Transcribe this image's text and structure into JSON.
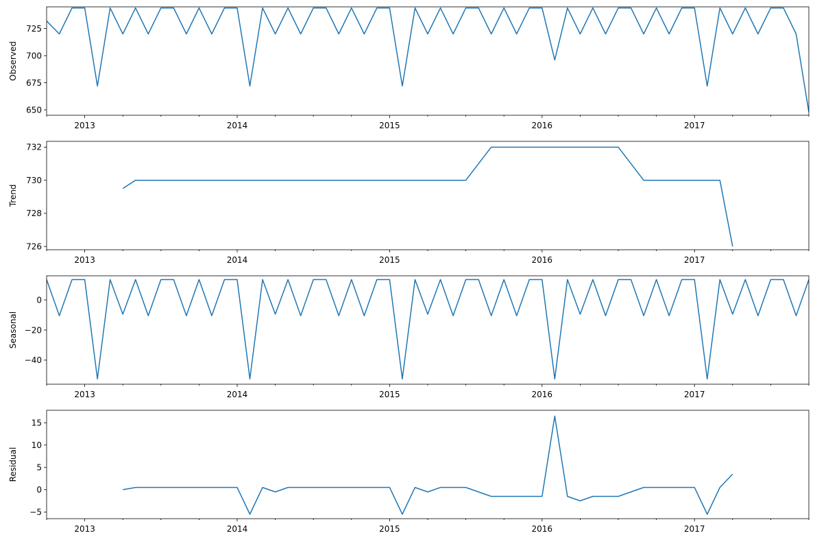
{
  "chart_data": [
    {
      "type": "line",
      "panel": "observed",
      "ylabel": "Observed",
      "ylim": [
        645,
        745
      ],
      "yticks": [
        650,
        675,
        700,
        725
      ],
      "xlim": [
        "2012-10",
        "2017-10"
      ],
      "x_tick_labels": [
        "2013",
        "2014",
        "2015",
        "2016",
        "2017"
      ],
      "color": "#1f77b4",
      "x": [
        "2012-10",
        "2012-11",
        "2012-12",
        "2013-01",
        "2013-02",
        "2013-03",
        "2013-04",
        "2013-05",
        "2013-06",
        "2013-07",
        "2013-08",
        "2013-09",
        "2013-10",
        "2013-11",
        "2013-12",
        "2014-01",
        "2014-02",
        "2014-03",
        "2014-04",
        "2014-05",
        "2014-06",
        "2014-07",
        "2014-08",
        "2014-09",
        "2014-10",
        "2014-11",
        "2014-12",
        "2015-01",
        "2015-02",
        "2015-03",
        "2015-04",
        "2015-05",
        "2015-06",
        "2015-07",
        "2015-08",
        "2015-09",
        "2015-10",
        "2015-11",
        "2015-12",
        "2016-01",
        "2016-02",
        "2016-03",
        "2016-04",
        "2016-05",
        "2016-06",
        "2016-07",
        "2016-08",
        "2016-09",
        "2016-10",
        "2016-11",
        "2016-12",
        "2017-01",
        "2017-02",
        "2017-03",
        "2017-04",
        "2017-05",
        "2017-06",
        "2017-07",
        "2017-08",
        "2017-09",
        "2017-10"
      ],
      "values": [
        732,
        720,
        744,
        744,
        672,
        744,
        720,
        744,
        720,
        744,
        744,
        720,
        744,
        720,
        744,
        744,
        672,
        744,
        720,
        744,
        720,
        744,
        744,
        720,
        744,
        720,
        744,
        744,
        672,
        744,
        720,
        744,
        720,
        744,
        744,
        720,
        744,
        720,
        744,
        744,
        696,
        744,
        720,
        744,
        720,
        744,
        744,
        720,
        744,
        720,
        744,
        744,
        672,
        744,
        720,
        744,
        720,
        744,
        744,
        720,
        648
      ]
    },
    {
      "type": "line",
      "panel": "trend",
      "ylabel": "Trend",
      "ylim": [
        725.8,
        732.35
      ],
      "yticks": [
        726,
        728,
        730,
        732
      ],
      "xlim": [
        "2012-10",
        "2017-10"
      ],
      "x_tick_labels": [
        "2013",
        "2014",
        "2015",
        "2016",
        "2017"
      ],
      "color": "#1f77b4",
      "x": [
        "2013-04",
        "2013-05",
        "2013-06",
        "2013-07",
        "2013-08",
        "2013-09",
        "2013-10",
        "2013-11",
        "2013-12",
        "2014-01",
        "2014-02",
        "2014-03",
        "2014-04",
        "2014-05",
        "2014-06",
        "2014-07",
        "2014-08",
        "2014-09",
        "2014-10",
        "2014-11",
        "2014-12",
        "2015-01",
        "2015-02",
        "2015-03",
        "2015-04",
        "2015-05",
        "2015-06",
        "2015-07",
        "2015-08",
        "2015-09",
        "2015-10",
        "2015-11",
        "2015-12",
        "2016-01",
        "2016-02",
        "2016-03",
        "2016-04",
        "2016-05",
        "2016-06",
        "2016-07",
        "2016-08",
        "2016-09",
        "2016-10",
        "2016-11",
        "2016-12",
        "2017-01",
        "2017-02",
        "2017-03",
        "2017-04"
      ],
      "values": [
        729.5,
        730,
        730,
        730,
        730,
        730,
        730,
        730,
        730,
        730,
        730,
        730,
        730,
        730,
        730,
        730,
        730,
        730,
        730,
        730,
        730,
        730,
        730,
        730,
        730,
        730,
        730,
        730,
        731,
        732,
        732,
        732,
        732,
        732,
        732,
        732,
        732,
        732,
        732,
        732,
        731,
        730,
        730,
        730,
        730,
        730,
        730,
        730,
        726
      ]
    },
    {
      "type": "line",
      "panel": "seasonal",
      "ylabel": "Seasonal",
      "ylim": [
        -56,
        16
      ],
      "yticks": [
        -40,
        -20,
        0
      ],
      "xlim": [
        "2012-10",
        "2017-10"
      ],
      "x_tick_labels": [
        "2013",
        "2014",
        "2015",
        "2016",
        "2017"
      ],
      "color": "#1f77b4",
      "x": [
        "2012-10",
        "2012-11",
        "2012-12",
        "2013-01",
        "2013-02",
        "2013-03",
        "2013-04",
        "2013-05",
        "2013-06",
        "2013-07",
        "2013-08",
        "2013-09",
        "2013-10",
        "2013-11",
        "2013-12",
        "2014-01",
        "2014-02",
        "2014-03",
        "2014-04",
        "2014-05",
        "2014-06",
        "2014-07",
        "2014-08",
        "2014-09",
        "2014-10",
        "2014-11",
        "2014-12",
        "2015-01",
        "2015-02",
        "2015-03",
        "2015-04",
        "2015-05",
        "2015-06",
        "2015-07",
        "2015-08",
        "2015-09",
        "2015-10",
        "2015-11",
        "2015-12",
        "2016-01",
        "2016-02",
        "2016-03",
        "2016-04",
        "2016-05",
        "2016-06",
        "2016-07",
        "2016-08",
        "2016-09",
        "2016-10",
        "2016-11",
        "2016-12",
        "2017-01",
        "2017-02",
        "2017-03",
        "2017-04",
        "2017-05",
        "2017-06",
        "2017-07",
        "2017-08",
        "2017-09",
        "2017-10"
      ],
      "values": [
        13.5,
        -10.5,
        13.5,
        13.5,
        -52.5,
        13.5,
        -9.5,
        13.5,
        -10.5,
        13.5,
        13.5,
        -10.5,
        13.5,
        -10.5,
        13.5,
        13.5,
        -52.5,
        13.5,
        -9.5,
        13.5,
        -10.5,
        13.5,
        13.5,
        -10.5,
        13.5,
        -10.5,
        13.5,
        13.5,
        -52.5,
        13.5,
        -9.5,
        13.5,
        -10.5,
        13.5,
        13.5,
        -10.5,
        13.5,
        -10.5,
        13.5,
        13.5,
        -52.5,
        13.5,
        -9.5,
        13.5,
        -10.5,
        13.5,
        13.5,
        -10.5,
        13.5,
        -10.5,
        13.5,
        13.5,
        -52.5,
        13.5,
        -9.5,
        13.5,
        -10.5,
        13.5,
        13.5,
        -10.5,
        13.5
      ]
    },
    {
      "type": "line",
      "panel": "residual",
      "ylabel": "Residual",
      "ylim": [
        -6.5,
        17.8
      ],
      "yticks": [
        -5,
        0,
        5,
        10,
        15
      ],
      "xlim": [
        "2012-10",
        "2017-10"
      ],
      "x_tick_labels": [
        "2013",
        "2014",
        "2015",
        "2016",
        "2017"
      ],
      "color": "#1f77b4",
      "x": [
        "2013-04",
        "2013-05",
        "2013-06",
        "2013-07",
        "2013-08",
        "2013-09",
        "2013-10",
        "2013-11",
        "2013-12",
        "2014-01",
        "2014-02",
        "2014-03",
        "2014-04",
        "2014-05",
        "2014-06",
        "2014-07",
        "2014-08",
        "2014-09",
        "2014-10",
        "2014-11",
        "2014-12",
        "2015-01",
        "2015-02",
        "2015-03",
        "2015-04",
        "2015-05",
        "2015-06",
        "2015-07",
        "2015-08",
        "2015-09",
        "2015-10",
        "2015-11",
        "2015-12",
        "2016-01",
        "2016-02",
        "2016-03",
        "2016-04",
        "2016-05",
        "2016-06",
        "2016-07",
        "2016-08",
        "2016-09",
        "2016-10",
        "2016-11",
        "2016-12",
        "2017-01",
        "2017-02",
        "2017-03",
        "2017-04"
      ],
      "values": [
        0,
        0.5,
        0.5,
        0.5,
        0.5,
        0.5,
        0.5,
        0.5,
        0.5,
        0.5,
        -5.5,
        0.5,
        -0.5,
        0.5,
        0.5,
        0.5,
        0.5,
        0.5,
        0.5,
        0.5,
        0.5,
        0.5,
        -5.5,
        0.5,
        -0.5,
        0.5,
        0.5,
        0.5,
        -0.5,
        -1.5,
        -1.5,
        -1.5,
        -1.5,
        -1.5,
        16.5,
        -1.5,
        -2.5,
        -1.5,
        -1.5,
        -1.5,
        -0.5,
        0.5,
        0.5,
        0.5,
        0.5,
        0.5,
        -5.5,
        0.5,
        3.5
      ]
    }
  ]
}
